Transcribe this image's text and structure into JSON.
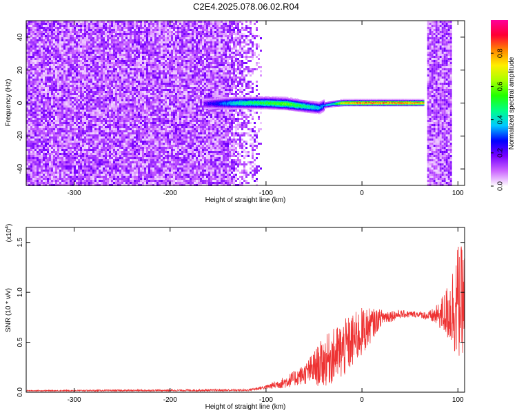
{
  "page": {
    "title": "C2E4.2025.078.06.02.R04"
  },
  "chart_data": [
    {
      "type": "heatmap",
      "xlabel": "Height of straight line (km)",
      "ylabel": "Frequency (Hz)",
      "xlim": [
        -350,
        107
      ],
      "ylim": [
        -50,
        50
      ],
      "xticks": [
        -300,
        -200,
        -100,
        0,
        100
      ],
      "yticks": [
        -40,
        -20,
        0,
        20,
        40
      ],
      "colorbar": {
        "label": "Normalized spectral amplitude",
        "range": [
          0.0,
          1.0
        ],
        "ticks": [
          "0.0",
          "0.2",
          "0.4",
          "0.6",
          "0.8"
        ],
        "colors": [
          "#ffffff",
          "#cc66ff",
          "#7700ff",
          "#0000ff",
          "#00c8ff",
          "#00ff88",
          "#22ff00",
          "#aaff00",
          "#ffee00",
          "#ff8800",
          "#ff0033",
          "#ff0099"
        ]
      },
      "regions": [
        {
          "name": "broadband noise",
          "x": [
            -350,
            -105
          ],
          "y": [
            -50,
            50
          ],
          "amplitude": 0.18
        },
        {
          "name": "noisy band",
          "x": [
            68,
            92
          ],
          "y": [
            -50,
            50
          ],
          "amplitude": 0.2
        }
      ],
      "carrier": {
        "x": [
          -165,
          -130,
          -100,
          -80,
          -60,
          -45,
          -40,
          -30,
          -20,
          -10,
          0,
          20,
          40,
          64
        ],
        "y": [
          0,
          0.5,
          0.5,
          0,
          -1.5,
          -2.5,
          -1,
          0,
          0.5,
          0.5,
          0.5,
          0.5,
          0.5,
          0.5
        ],
        "amplitude": [
          0.2,
          0.45,
          0.55,
          0.6,
          0.5,
          0.4,
          0.35,
          0.45,
          0.8,
          0.85,
          0.9,
          0.9,
          0.88,
          0.85
        ]
      }
    },
    {
      "type": "line",
      "xlabel": "Height of straight line (km)",
      "ylabel": "SNR (10 * v/v)",
      "scale_label": "(x10",
      "scale_exp": "4",
      "xlim": [
        -350,
        107
      ],
      "ylim": [
        0,
        1.65
      ],
      "xticks": [
        -300,
        -200,
        -100,
        0,
        100
      ],
      "yticks": [
        "0.0",
        "0.5",
        "1.0",
        "1.5"
      ],
      "color": "#ee3333",
      "envelope": {
        "x": [
          -350,
          -120,
          -100,
          -80,
          -60,
          -40,
          -20,
          0,
          20,
          40,
          60,
          70,
          80,
          90,
          95,
          100,
          107
        ],
        "y": [
          0.015,
          0.02,
          0.05,
          0.1,
          0.18,
          0.3,
          0.42,
          0.6,
          0.75,
          0.78,
          0.78,
          0.76,
          0.77,
          0.8,
          0.85,
          0.9,
          0.92
        ],
        "spread": [
          0.005,
          0.01,
          0.02,
          0.06,
          0.1,
          0.25,
          0.3,
          0.25,
          0.08,
          0.04,
          0.03,
          0.05,
          0.12,
          0.3,
          0.45,
          0.6,
          0.5
        ]
      }
    }
  ]
}
